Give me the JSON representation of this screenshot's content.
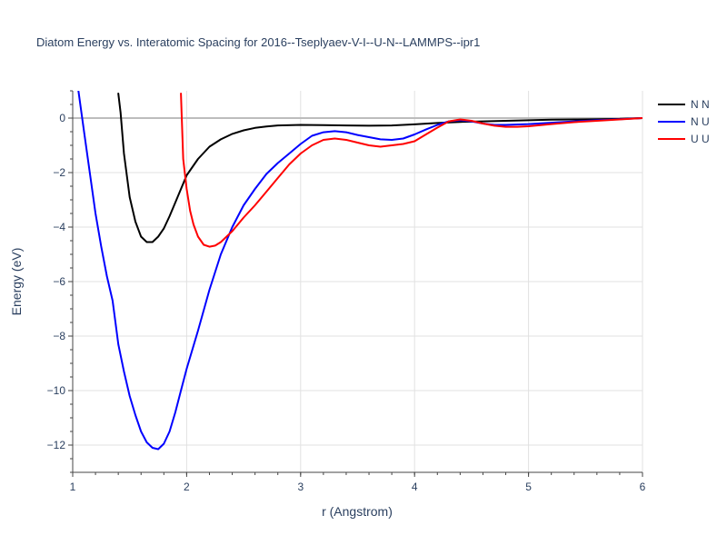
{
  "chart_data": {
    "type": "line",
    "title": "Diatom Energy vs. Interatomic Spacing for 2016--Tseplyaev-V-I--U-N--LAMMPS--ipr1",
    "xlabel": "r (Angstrom)",
    "ylabel": "Energy (eV)",
    "xlim": [
      1,
      6
    ],
    "ylim": [
      -13,
      1
    ],
    "xticks": [
      1,
      2,
      3,
      4,
      5,
      6
    ],
    "yticks": [
      0,
      -2,
      -4,
      -6,
      -8,
      -10,
      -12
    ],
    "grid": true,
    "legend_position": "top-right",
    "series": [
      {
        "name": "N N",
        "color": "#000000",
        "x": [
          1.4,
          1.42,
          1.45,
          1.5,
          1.55,
          1.6,
          1.65,
          1.7,
          1.75,
          1.8,
          1.85,
          1.9,
          2.0,
          2.1,
          2.2,
          2.3,
          2.4,
          2.5,
          2.6,
          2.7,
          2.8,
          3.0,
          3.2,
          3.4,
          3.6,
          3.8,
          4.0,
          4.2,
          4.4,
          4.6,
          4.8,
          5.0,
          5.2,
          5.4,
          5.6,
          5.8,
          6.0
        ],
        "y": [
          0.9,
          0.2,
          -1.3,
          -2.9,
          -3.8,
          -4.35,
          -4.55,
          -4.55,
          -4.35,
          -4.05,
          -3.6,
          -3.1,
          -2.1,
          -1.5,
          -1.05,
          -0.78,
          -0.58,
          -0.45,
          -0.36,
          -0.31,
          -0.27,
          -0.25,
          -0.26,
          -0.27,
          -0.28,
          -0.27,
          -0.23,
          -0.18,
          -0.14,
          -0.12,
          -0.1,
          -0.08,
          -0.06,
          -0.05,
          -0.04,
          -0.03,
          0.0
        ]
      },
      {
        "name": "N U",
        "color": "#0000ff",
        "x": [
          1.05,
          1.1,
          1.15,
          1.2,
          1.25,
          1.3,
          1.35,
          1.4,
          1.45,
          1.5,
          1.55,
          1.6,
          1.65,
          1.7,
          1.75,
          1.8,
          1.85,
          1.9,
          1.95,
          2.0,
          2.1,
          2.2,
          2.3,
          2.4,
          2.5,
          2.6,
          2.7,
          2.8,
          2.9,
          3.0,
          3.1,
          3.2,
          3.3,
          3.4,
          3.5,
          3.6,
          3.7,
          3.8,
          3.9,
          4.0,
          4.1,
          4.2,
          4.3,
          4.4,
          4.5,
          4.6,
          4.7,
          4.8,
          5.0,
          5.2,
          5.4,
          5.6,
          5.8,
          6.0
        ],
        "y": [
          1.0,
          -0.5,
          -2.0,
          -3.5,
          -4.7,
          -5.8,
          -6.7,
          -8.3,
          -9.3,
          -10.2,
          -10.9,
          -11.5,
          -11.9,
          -12.1,
          -12.15,
          -11.95,
          -11.5,
          -10.8,
          -10.0,
          -9.2,
          -7.8,
          -6.3,
          -5.0,
          -4.0,
          -3.2,
          -2.6,
          -2.05,
          -1.65,
          -1.3,
          -0.95,
          -0.65,
          -0.52,
          -0.48,
          -0.52,
          -0.62,
          -0.7,
          -0.78,
          -0.8,
          -0.75,
          -0.6,
          -0.42,
          -0.25,
          -0.12,
          -0.08,
          -0.12,
          -0.2,
          -0.25,
          -0.25,
          -0.22,
          -0.17,
          -0.12,
          -0.08,
          -0.04,
          0.0
        ]
      },
      {
        "name": "U U",
        "color": "#ff0000",
        "x": [
          1.95,
          1.97,
          2.0,
          2.03,
          2.06,
          2.1,
          2.15,
          2.2,
          2.25,
          2.3,
          2.4,
          2.5,
          2.6,
          2.7,
          2.8,
          2.9,
          3.0,
          3.1,
          3.2,
          3.3,
          3.4,
          3.5,
          3.6,
          3.7,
          3.8,
          3.9,
          4.0,
          4.1,
          4.2,
          4.3,
          4.4,
          4.5,
          4.6,
          4.7,
          4.8,
          4.9,
          5.0,
          5.2,
          5.4,
          5.6,
          5.8,
          6.0
        ],
        "y": [
          0.9,
          -1.5,
          -2.6,
          -3.4,
          -3.9,
          -4.35,
          -4.65,
          -4.72,
          -4.68,
          -4.55,
          -4.15,
          -3.65,
          -3.2,
          -2.7,
          -2.2,
          -1.7,
          -1.3,
          -1.0,
          -0.8,
          -0.75,
          -0.8,
          -0.9,
          -1.0,
          -1.05,
          -1.0,
          -0.95,
          -0.85,
          -0.6,
          -0.35,
          -0.12,
          -0.05,
          -0.1,
          -0.2,
          -0.28,
          -0.32,
          -0.32,
          -0.3,
          -0.22,
          -0.15,
          -0.1,
          -0.05,
          0.0
        ]
      }
    ]
  }
}
